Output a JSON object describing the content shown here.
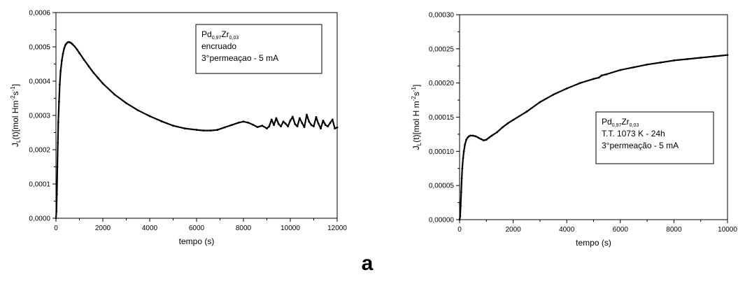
{
  "figure_label": "a",
  "chart_data": [
    {
      "type": "line",
      "xlabel": "tempo (s)",
      "ylabel": {
        "main": "J",
        "sub": "L",
        "mid": "(t)[mol Hm",
        "sup1": "-2",
        "mid2": "s",
        "sup2": "-1",
        "end": "]"
      },
      "xlim": [
        0,
        12000
      ],
      "ylim": [
        0,
        0.0006
      ],
      "xticks": [
        "0",
        "2000",
        "4000",
        "6000",
        "8000",
        "10000",
        "12000"
      ],
      "xtick_values": [
        0,
        2000,
        4000,
        6000,
        8000,
        10000,
        12000
      ],
      "yticks": [
        "0,0000",
        "0,0001",
        "0,0002",
        "0,0003",
        "0,0004",
        "0,0005",
        "0,0006"
      ],
      "ytick_values": [
        0,
        0.0001,
        0.0002,
        0.0003,
        0.0004,
        0.0005,
        0.0006
      ],
      "legend": [
        {
          "a": "Pd",
          "a_sub": "0,97",
          "b": "Zr",
          "b_sub": "0,03"
        },
        {
          "text": "encruado"
        },
        {
          "text": "3°permeaçao - 5 mA"
        }
      ],
      "legend_position": "top-right",
      "series": [
        {
          "x": [
            0,
            20,
            40,
            60,
            80,
            100,
            130,
            160,
            200,
            250,
            300,
            350,
            400,
            450,
            500,
            550,
            600,
            650,
            700,
            800,
            900,
            1000,
            1200,
            1400,
            1600,
            1800,
            2000,
            2500,
            3000,
            3500,
            4000,
            4500,
            5000,
            5500,
            6000,
            6300,
            6600,
            6900,
            7200,
            7500,
            7800,
            8000,
            8200,
            8400,
            8600,
            8800,
            9000,
            9100,
            9200,
            9300,
            9400,
            9500,
            9600,
            9700,
            9800,
            9900,
            10000,
            10100,
            10200,
            10300,
            10400,
            10500,
            10600,
            10700,
            10800,
            10900,
            11000,
            11100,
            11200,
            11300,
            11400,
            11500,
            11600,
            11700,
            11800,
            11900,
            12000
          ],
          "y": [
            0.0,
            2e-05,
            7e-05,
            0.00015,
            0.00022,
            0.00028,
            0.00034,
            0.00039,
            0.00043,
            0.00046,
            0.00048,
            0.000495,
            0.000505,
            0.00051,
            0.000513,
            0.000514,
            0.000513,
            0.000511,
            0.000508,
            0.000501,
            0.000492,
            0.000482,
            0.000462,
            0.000443,
            0.000425,
            0.000409,
            0.000393,
            0.000361,
            0.000336,
            0.000315,
            0.000298,
            0.000283,
            0.00027,
            0.000262,
            0.000258,
            0.000256,
            0.000256,
            0.000258,
            0.000265,
            0.000272,
            0.000279,
            0.000282,
            0.000279,
            0.000273,
            0.000266,
            0.00027,
            0.000262,
            0.000268,
            0.000288,
            0.000272,
            0.000292,
            0.000275,
            0.000268,
            0.000282,
            0.000276,
            0.000268,
            0.000285,
            0.000296,
            0.000275,
            0.000268,
            0.000292,
            0.000278,
            0.000266,
            0.000302,
            0.000282,
            0.000272,
            0.000268,
            0.000295,
            0.000276,
            0.000262,
            0.000285,
            0.000272,
            0.000268,
            0.000278,
            0.000288,
            0.000262,
            0.000265
          ]
        }
      ]
    },
    {
      "type": "line",
      "xlabel": "tempo (s)",
      "ylabel": {
        "main": "J",
        "sub": "L",
        "mid": "(t)[mol H m",
        "sup1": "-2",
        "mid2": "s",
        "sup2": "-1",
        "end": "]"
      },
      "xlim": [
        0,
        10000
      ],
      "ylim": [
        0,
        0.0003
      ],
      "xticks": [
        "0",
        "2000",
        "4000",
        "6000",
        "8000",
        "10000"
      ],
      "xtick_values": [
        0,
        2000,
        4000,
        6000,
        8000,
        10000
      ],
      "yticks": [
        "0,00000",
        "0,00005",
        "0,00010",
        "0,00015",
        "0,00020",
        "0,00025",
        "0,00030"
      ],
      "ytick_values": [
        0,
        5e-05,
        0.0001,
        0.00015,
        0.0002,
        0.00025,
        0.0003
      ],
      "legend": [
        {
          "a": "Pd",
          "a_sub": "0,97",
          "b": "Zr",
          "b_sub": "0,03"
        },
        {
          "text": "T.T. 1073 K - 24h"
        },
        {
          "text": "3°permeação  - 5 mA"
        }
      ],
      "legend_position": "center-right",
      "series": [
        {
          "x": [
            0,
            20,
            40,
            60,
            80,
            100,
            130,
            160,
            200,
            250,
            300,
            350,
            400,
            500,
            600,
            700,
            800,
            900,
            1000,
            1100,
            1200,
            1400,
            1600,
            1800,
            2000,
            2500,
            3000,
            3500,
            4000,
            4500,
            5000,
            5200,
            5300,
            5500,
            6000,
            6500,
            7000,
            7500,
            8000,
            8500,
            9000,
            9500,
            10000
          ],
          "y": [
            0.0,
            5e-06,
            2e-05,
            4e-05,
            6e-05,
            7.5e-05,
            9e-05,
            0.0001,
            0.00011,
            0.000117,
            0.00012,
            0.000122,
            0.000123,
            0.000123,
            0.000122,
            0.00012,
            0.000118,
            0.000116,
            0.000117,
            0.00012,
            0.000123,
            0.000128,
            0.000135,
            0.000141,
            0.000146,
            0.000158,
            0.000172,
            0.000183,
            0.000192,
            0.0002,
            0.000206,
            0.000208,
            0.000211,
            0.000213,
            0.000219,
            0.000223,
            0.000227,
            0.00023,
            0.000233,
            0.000235,
            0.000237,
            0.000239,
            0.000241
          ]
        }
      ]
    }
  ]
}
